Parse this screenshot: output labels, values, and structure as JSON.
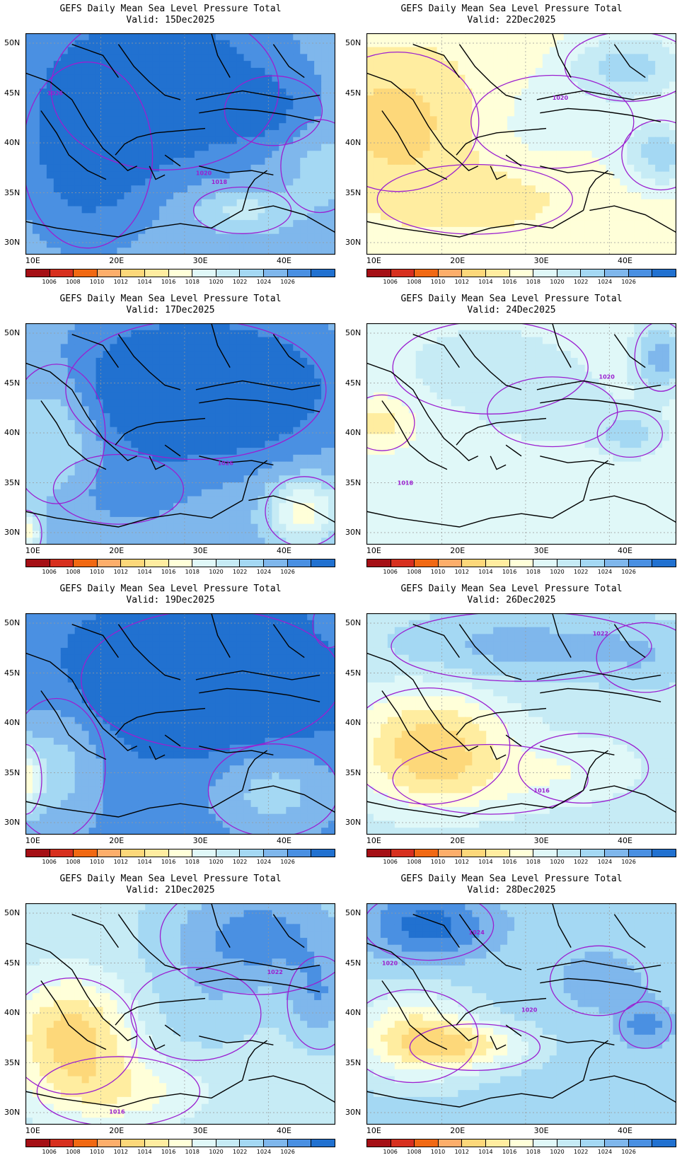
{
  "figure": {
    "panels": [
      {
        "title": "GEFS Daily Mean Sea Level Pressure Total",
        "valid": "Valid: 15Dec2025",
        "base": 10,
        "blobs": [
          [
            0.45,
            0.25,
            0.35,
            0.35,
            3
          ],
          [
            0.2,
            0.55,
            0.2,
            0.4,
            2
          ],
          [
            0.7,
            0.8,
            0.15,
            0.1,
            -2
          ],
          [
            0.95,
            0.6,
            0.12,
            0.2,
            -1
          ],
          [
            0.8,
            0.35,
            0.15,
            0.15,
            1
          ]
        ],
        "labels": [
          [
            "1026",
            0.07,
            0.28
          ],
          [
            "1020",
            0.55,
            0.64
          ],
          [
            "1018",
            0.6,
            0.68
          ]
        ]
      },
      {
        "title": "GEFS Daily Mean Sea Level Pressure Total",
        "valid": "Valid: 22Dec2025",
        "base": 6,
        "blobs": [
          [
            0.1,
            0.4,
            0.25,
            0.3,
            -2
          ],
          [
            0.35,
            0.75,
            0.3,
            0.15,
            -1
          ],
          [
            0.85,
            0.15,
            0.2,
            0.15,
            3
          ],
          [
            0.95,
            0.55,
            0.12,
            0.15,
            3
          ],
          [
            0.6,
            0.4,
            0.25,
            0.2,
            1
          ]
        ],
        "labels": [
          [
            "1020",
            0.6,
            0.3
          ]
        ]
      },
      {
        "title": "GEFS Daily Mean Sea Level Pressure Total",
        "valid": "Valid: 17Dec2025",
        "base": 10,
        "blobs": [
          [
            0.55,
            0.3,
            0.4,
            0.3,
            4
          ],
          [
            0.1,
            0.5,
            0.15,
            0.3,
            -2
          ],
          [
            0.9,
            0.85,
            0.12,
            0.15,
            -4
          ],
          [
            0.0,
            0.95,
            0.05,
            0.1,
            -4
          ],
          [
            0.3,
            0.75,
            0.2,
            0.15,
            1
          ]
        ],
        "labels": [
          [
            "1026",
            0.62,
            0.64
          ]
        ]
      },
      {
        "title": "GEFS Daily Mean Sea Level Pressure Total",
        "valid": "Valid: 24Dec2025",
        "base": 7,
        "blobs": [
          [
            0.05,
            0.45,
            0.1,
            0.12,
            -2
          ],
          [
            0.85,
            0.5,
            0.1,
            0.1,
            2
          ],
          [
            0.95,
            0.15,
            0.08,
            0.15,
            3
          ],
          [
            0.4,
            0.2,
            0.3,
            0.2,
            1
          ],
          [
            0.6,
            0.4,
            0.2,
            0.15,
            1
          ]
        ],
        "labels": [
          [
            "1020",
            0.75,
            0.25
          ],
          [
            "1018",
            0.1,
            0.73
          ]
        ]
      },
      {
        "title": "GEFS Daily Mean Sea Level Pressure Total",
        "valid": "Valid: 19Dec2025",
        "base": 11,
        "blobs": [
          [
            0.6,
            0.3,
            0.4,
            0.3,
            3
          ],
          [
            0.0,
            0.75,
            0.05,
            0.15,
            -4
          ],
          [
            0.1,
            0.7,
            0.15,
            0.3,
            -2
          ],
          [
            0.8,
            0.8,
            0.2,
            0.2,
            -2
          ],
          [
            0.98,
            0.05,
            0.05,
            0.1,
            -1
          ]
        ],
        "labels": []
      },
      {
        "title": "GEFS Daily Mean Sea Level Pressure Total",
        "valid": "Valid: 26Dec2025",
        "base": 8,
        "blobs": [
          [
            0.2,
            0.6,
            0.25,
            0.25,
            -4
          ],
          [
            0.4,
            0.75,
            0.3,
            0.15,
            -1
          ],
          [
            0.5,
            0.15,
            0.4,
            0.15,
            2
          ],
          [
            0.9,
            0.2,
            0.15,
            0.15,
            1
          ],
          [
            0.7,
            0.7,
            0.2,
            0.15,
            -1
          ]
        ],
        "labels": [
          [
            "1022",
            0.73,
            0.1
          ],
          [
            "1016",
            0.54,
            0.81
          ]
        ]
      },
      {
        "title": "GEFS Daily Mean Sea Level Pressure Total",
        "valid": "Valid: 21Dec2025",
        "base": 8,
        "blobs": [
          [
            0.15,
            0.6,
            0.2,
            0.25,
            -4
          ],
          [
            0.3,
            0.85,
            0.25,
            0.15,
            -2
          ],
          [
            0.75,
            0.15,
            0.3,
            0.25,
            3
          ],
          [
            0.95,
            0.45,
            0.1,
            0.2,
            2
          ],
          [
            0.55,
            0.5,
            0.2,
            0.2,
            1
          ]
        ],
        "labels": [
          [
            "1022",
            0.78,
            0.32
          ],
          [
            "1016",
            0.27,
            0.95
          ]
        ]
      },
      {
        "title": "GEFS Daily Mean Sea Level Pressure Total",
        "valid": "Valid: 28Dec2025",
        "base": 9,
        "blobs": [
          [
            0.2,
            0.1,
            0.2,
            0.15,
            3
          ],
          [
            0.15,
            0.6,
            0.2,
            0.2,
            -4
          ],
          [
            0.35,
            0.65,
            0.2,
            0.1,
            -3
          ],
          [
            0.75,
            0.35,
            0.15,
            0.15,
            1
          ],
          [
            0.9,
            0.55,
            0.08,
            0.1,
            2
          ]
        ],
        "labels": [
          [
            "1024",
            0.33,
            0.14
          ],
          [
            "1020",
            0.05,
            0.28
          ],
          [
            "1020",
            0.5,
            0.49
          ]
        ]
      }
    ],
    "y_ticks": [
      "50N",
      "45N",
      "40N",
      "35N",
      "30N"
    ],
    "x_ticks": [
      "10E",
      "20E",
      "30E",
      "40E"
    ],
    "colorbar": {
      "colors": [
        "#a50f15",
        "#d7301f",
        "#f16913",
        "#fdae6b",
        "#fdd87a",
        "#ffeda0",
        "#ffffd9",
        "#e0f8f8",
        "#c6ebf5",
        "#a4d8f3",
        "#7fb7ec",
        "#4a90e2",
        "#2171d0"
      ],
      "labels": [
        "1006",
        "1008",
        "1010",
        "1012",
        "1014",
        "1016",
        "1018",
        "1020",
        "1022",
        "1024",
        "1026"
      ]
    },
    "contour_color": "#9b1fd0"
  }
}
